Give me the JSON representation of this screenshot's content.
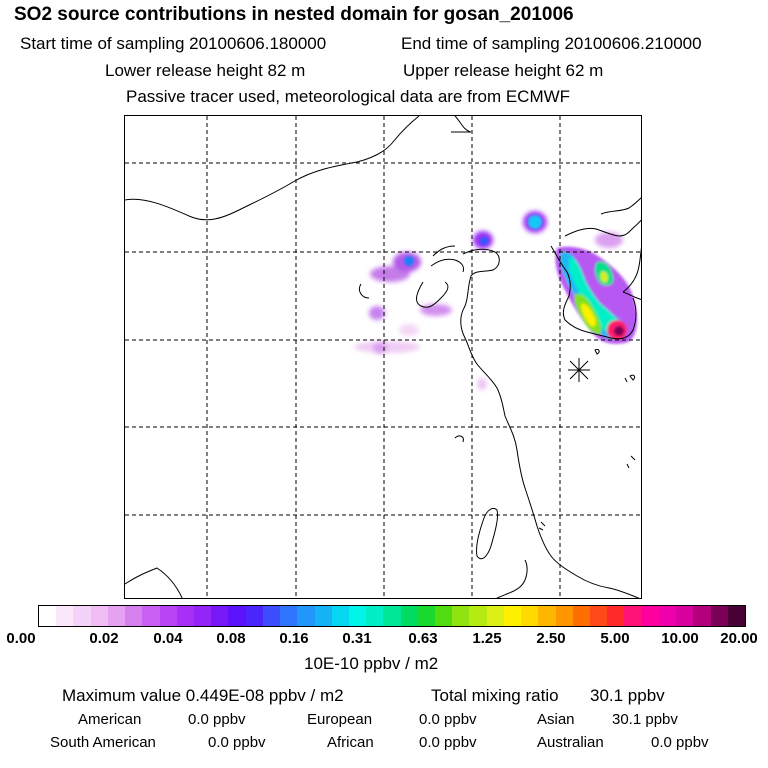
{
  "header": {
    "title": "SO2 source contributions in nested domain for gosan_201006",
    "start_label": "Start time of sampling 20100606.180000",
    "end_label": "End time of sampling 20100606.210000",
    "lower_label": "Lower release height   82 m",
    "upper_label": "Upper release height   62 m",
    "note": "Passive tracer used, meteorological data are from ECMWF"
  },
  "colorbar": {
    "colors": [
      "#ffffff",
      "#fbe9fb",
      "#f5d2f7",
      "#efbcf3",
      "#e4a2f0",
      "#d680f0",
      "#c861f2",
      "#b844f5",
      "#a82ff5",
      "#9424f7",
      "#7818f9",
      "#5c12fb",
      "#4a26fc",
      "#3d4dfd",
      "#2f74fd",
      "#2196fb",
      "#16b2f6",
      "#06d6f2",
      "#00f4e8",
      "#00efc4",
      "#00e796",
      "#00dc62",
      "#19d92c",
      "#52dc10",
      "#8ee310",
      "#b6eb12",
      "#dcf017",
      "#fff100",
      "#ffd900",
      "#ffb600",
      "#ff9600",
      "#ff6e00",
      "#ff4a18",
      "#ff2a2a",
      "#ff1278",
      "#ff00a0",
      "#f000ac",
      "#d8009e",
      "#b2007c",
      "#7a0058",
      "#480034"
    ],
    "ticks": [
      "0.00",
      "0.02",
      "0.04",
      "0.08",
      "0.16",
      "0.31",
      "0.63",
      "1.25",
      "2.50",
      "5.00",
      "10.00",
      "20.00"
    ],
    "units": "10E-10 ppbv / m2"
  },
  "stats": {
    "max_label": "Maximum value  0.449E-08 ppbv / m2",
    "total_label": "Total mixing ratio",
    "total_value": "30.1 ppbv",
    "regions": [
      {
        "name": "American",
        "value": "0.0 ppbv"
      },
      {
        "name": "European",
        "value": "0.0 ppbv"
      },
      {
        "name": "Asian",
        "value": "30.1 ppbv"
      },
      {
        "name": "South American",
        "value": "0.0 ppbv"
      },
      {
        "name": "African",
        "value": "0.0 ppbv"
      },
      {
        "name": "Australian",
        "value": "0.0 ppbv"
      }
    ]
  }
}
